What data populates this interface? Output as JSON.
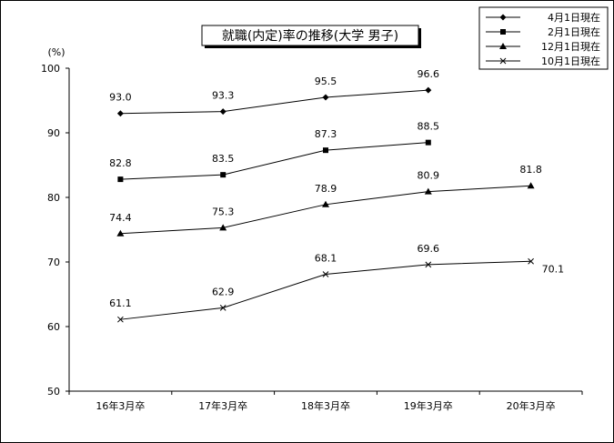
{
  "chart_data": {
    "type": "line",
    "title": "就職(内定)率の推移(大学  男子)",
    "ylabel": "(%)",
    "xlabel": "",
    "categories": [
      "16年3月卒",
      "17年3月卒",
      "18年3月卒",
      "19年3月卒",
      "20年3月卒"
    ],
    "ylim": [
      50,
      100
    ],
    "yticks": [
      50,
      60,
      70,
      80,
      90,
      100
    ],
    "grid": false,
    "legend_position": "top-right",
    "series": [
      {
        "name": "4月1日現在",
        "marker": "diamond",
        "values": [
          93.0,
          93.3,
          95.5,
          96.6,
          null
        ],
        "labels": [
          "93.0",
          "93.3",
          "95.5",
          "96.6",
          null
        ]
      },
      {
        "name": "2月1日現在",
        "marker": "square",
        "values": [
          82.8,
          83.5,
          87.3,
          88.5,
          null
        ],
        "labels": [
          "82.8",
          "83.5",
          "87.3",
          "88.5",
          null
        ]
      },
      {
        "name": "12月1日現在",
        "marker": "triangle",
        "values": [
          74.4,
          75.3,
          78.9,
          80.9,
          81.8
        ],
        "labels": [
          "74.4",
          "75.3",
          "78.9",
          "80.9",
          "81.8"
        ]
      },
      {
        "name": "10月1日現在",
        "marker": "x",
        "values": [
          61.1,
          62.9,
          68.1,
          69.6,
          70.1
        ],
        "labels": [
          "61.1",
          "62.9",
          "68.1",
          "69.6",
          "70.1"
        ]
      }
    ]
  }
}
